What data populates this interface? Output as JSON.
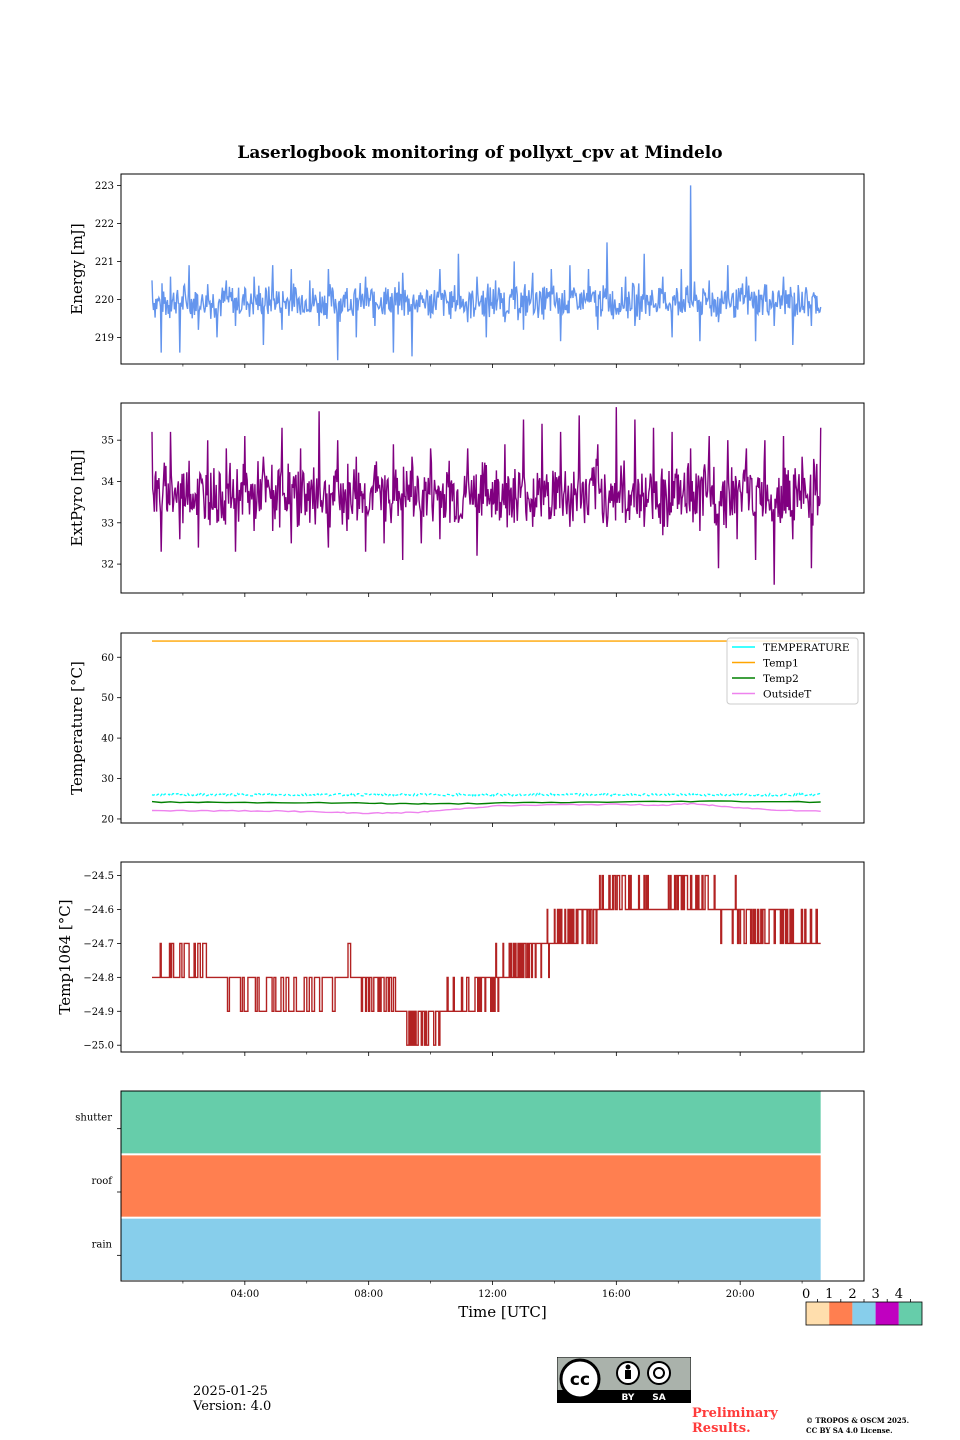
{
  "title": "Laserlogbook monitoring of pollyxt_cpv at Mindelo",
  "chart_data": [
    {
      "type": "line",
      "ylabel": "Energy [mJ]",
      "ylim": [
        218.3,
        223.3
      ],
      "yticks": [
        219,
        220,
        221,
        222,
        223
      ],
      "xlim_hours": [
        0,
        24
      ],
      "grid": false,
      "series": [
        {
          "color": "#6495ed",
          "baseline": 219.95,
          "noise_amp": 0.55,
          "x_hours": [
            1.0,
            1.3,
            1.6,
            1.9,
            2.2,
            2.5,
            2.8,
            3.1,
            3.4,
            3.7,
            4.0,
            4.3,
            4.6,
            4.9,
            5.2,
            5.5,
            5.8,
            6.1,
            6.4,
            6.7,
            7.0,
            7.3,
            7.6,
            7.9,
            8.2,
            8.5,
            8.8,
            9.1,
            9.4,
            9.7,
            10.0,
            10.3,
            10.6,
            10.9,
            11.2,
            11.5,
            11.8,
            12.1,
            12.4,
            12.7,
            13.0,
            13.3,
            13.6,
            13.9,
            14.2,
            14.5,
            14.8,
            15.1,
            15.4,
            15.7,
            16.0,
            16.3,
            16.6,
            16.9,
            17.2,
            17.5,
            17.8,
            18.1,
            18.4,
            18.7,
            19.0,
            19.3,
            19.6,
            19.9,
            20.2,
            20.5,
            20.8,
            21.1,
            21.4,
            21.7,
            22.0,
            22.3,
            22.6
          ],
          "y": [
            220.5,
            218.6,
            220.6,
            218.6,
            220.9,
            219.2,
            220.4,
            219.0,
            220.5,
            219.3,
            220.3,
            220.6,
            218.8,
            220.9,
            219.2,
            220.8,
            219.6,
            220.5,
            219.3,
            220.8,
            218.4,
            220.3,
            219.0,
            220.6,
            219.3,
            220.2,
            218.6,
            220.7,
            218.5,
            220.0,
            219.5,
            220.8,
            219.6,
            221.2,
            219.4,
            220.6,
            219.0,
            220.5,
            219.4,
            221.0,
            219.2,
            220.7,
            219.6,
            220.8,
            218.9,
            220.9,
            219.8,
            220.8,
            219.2,
            221.5,
            219.6,
            220.6,
            219.3,
            221.2,
            219.8,
            220.6,
            219.0,
            220.8,
            223.0,
            218.9,
            220.5,
            219.4,
            220.9,
            219.8,
            220.6,
            218.9,
            220.4,
            219.3,
            220.6,
            218.8,
            220.2,
            219.3,
            219.8
          ]
        }
      ]
    },
    {
      "type": "line",
      "ylabel": "ExtPyro [mJ]",
      "ylim": [
        31.3,
        35.9
      ],
      "yticks": [
        32,
        33,
        34,
        35
      ],
      "xlim_hours": [
        0,
        24
      ],
      "grid": false,
      "series": [
        {
          "color": "#800080",
          "noise_amp": 0.9,
          "x_hours": [
            1.0,
            1.3,
            1.6,
            1.9,
            2.2,
            2.5,
            2.8,
            3.1,
            3.4,
            3.7,
            4.0,
            4.3,
            4.6,
            4.9,
            5.2,
            5.5,
            5.8,
            6.1,
            6.4,
            6.7,
            7.0,
            7.3,
            7.6,
            7.9,
            8.2,
            8.5,
            8.8,
            9.1,
            9.4,
            9.7,
            10.0,
            10.3,
            10.6,
            10.9,
            11.2,
            11.5,
            11.8,
            12.1,
            12.4,
            12.7,
            13.0,
            13.3,
            13.6,
            13.9,
            14.2,
            14.5,
            14.8,
            15.1,
            15.4,
            15.7,
            16.0,
            16.3,
            16.6,
            16.9,
            17.2,
            17.5,
            17.8,
            18.1,
            18.4,
            18.7,
            19.0,
            19.3,
            19.6,
            19.9,
            20.2,
            20.5,
            20.8,
            21.1,
            21.4,
            21.7,
            22.0,
            22.3,
            22.6
          ],
          "y": [
            35.2,
            32.3,
            35.2,
            32.6,
            34.5,
            32.4,
            35.0,
            33.0,
            34.8,
            32.3,
            35.1,
            32.8,
            34.6,
            32.8,
            35.3,
            32.5,
            34.8,
            33.0,
            35.7,
            32.4,
            35.0,
            32.8,
            34.6,
            32.3,
            34.4,
            32.5,
            34.9,
            32.1,
            34.6,
            32.5,
            34.8,
            32.6,
            34.5,
            33.0,
            34.8,
            32.2,
            34.4,
            33.2,
            34.9,
            33.0,
            35.5,
            32.9,
            35.4,
            33.2,
            35.2,
            32.9,
            35.6,
            33.2,
            34.9,
            32.9,
            35.8,
            33.0,
            35.5,
            32.9,
            35.3,
            32.7,
            35.2,
            33.2,
            34.8,
            32.8,
            35.1,
            31.9,
            35.0,
            32.6,
            34.8,
            32.1,
            35.0,
            31.5,
            35.1,
            32.6,
            34.6,
            31.9,
            35.3
          ]
        }
      ]
    },
    {
      "type": "line",
      "ylabel": "Temperature [°C]",
      "ylim": [
        19,
        66
      ],
      "yticks": [
        20,
        30,
        40,
        50,
        60
      ],
      "xlim_hours": [
        0,
        24
      ],
      "grid": false,
      "legend_position": "top-right",
      "series": [
        {
          "name": "TEMPERATURE",
          "color": "#00ffff",
          "style": "dotted",
          "x_hours": [
            1.0,
            22.6
          ],
          "y": [
            26.0,
            26.0
          ]
        },
        {
          "name": "Temp1",
          "color": "#ffa500",
          "x_hours": [
            1.0,
            22.6
          ],
          "y": [
            64.0,
            64.0
          ]
        },
        {
          "name": "Temp2",
          "color": "#008000",
          "x_hours": [
            1.0,
            4.0,
            8.0,
            10.0,
            13.0,
            16.0,
            19.0,
            22.6
          ],
          "y": [
            24.2,
            24.1,
            23.9,
            23.7,
            24.0,
            24.2,
            24.4,
            24.2
          ]
        },
        {
          "name": "OutsideT",
          "color": "#ee82ee",
          "x_hours": [
            1.0,
            3.0,
            5.0,
            7.0,
            8.0,
            9.5,
            10.5,
            12.0,
            14.0,
            16.0,
            17.5,
            18.5,
            19.5,
            21.0,
            22.6
          ],
          "y": [
            22.1,
            22.0,
            22.0,
            21.6,
            21.4,
            21.6,
            22.2,
            23.2,
            23.5,
            23.6,
            23.4,
            23.8,
            23.0,
            22.3,
            21.9
          ]
        }
      ]
    },
    {
      "type": "line",
      "ylabel": "Temp1064 [°C]",
      "ylim": [
        -25.02,
        -24.46
      ],
      "yticks": [
        -25.0,
        -24.9,
        -24.8,
        -24.7,
        -24.6,
        -24.5
      ],
      "ytick_labels": [
        "−25.0",
        "−24.9",
        "−24.8",
        "−24.7",
        "−24.6",
        "−24.5"
      ],
      "xlim_hours": [
        0,
        24
      ],
      "grid": false,
      "step": 0.1,
      "series": [
        {
          "color": "#b22222",
          "x_hours": [
            1.0,
            2.0,
            3.2,
            5.0,
            7.5,
            8.5,
            9.5,
            10.5,
            11.5,
            12.2,
            12.8,
            13.5,
            14.0,
            14.6,
            15.4,
            16.0,
            16.8,
            17.5,
            18.0,
            19.0,
            19.8,
            20.5,
            21.5,
            22.6
          ],
          "base": [
            -24.8,
            -24.75,
            -24.8,
            -24.85,
            -24.8,
            -24.85,
            -24.95,
            -24.9,
            -24.85,
            -24.8,
            -24.75,
            -24.7,
            -24.7,
            -24.65,
            -24.6,
            -24.55,
            -24.6,
            -24.6,
            -24.55,
            -24.6,
            -24.6,
            -24.65,
            -24.65,
            -24.7
          ]
        }
      ]
    },
    {
      "type": "heatmap",
      "rows": [
        "shutter",
        "roof",
        "rain"
      ],
      "row_status": [
        4,
        1,
        2
      ],
      "x_end_hours": 22.6,
      "xlim_hours": [
        0,
        24
      ],
      "xticks_hours": [
        4,
        8,
        12,
        16,
        20
      ],
      "xtick_labels": [
        "04:00",
        "08:00",
        "12:00",
        "16:00",
        "20:00"
      ],
      "xlabel": "Time [UTC]",
      "colorbar": {
        "ticks": [
          "0",
          "1",
          "2",
          "3",
          "4"
        ],
        "colors": [
          "#ffdead",
          "#ff7f50",
          "#87ceeb",
          "#c000c0",
          "#66cdaa"
        ]
      }
    }
  ],
  "footer": {
    "date": "2025-01-25",
    "version": "Version: 4.0",
    "license_badge": [
      "BY",
      "SA"
    ],
    "preliminary": [
      "Preliminary",
      "Results."
    ],
    "copyright": [
      "© TROPOS & OSCM 2025.",
      "CC BY SA 4.0 License."
    ]
  }
}
